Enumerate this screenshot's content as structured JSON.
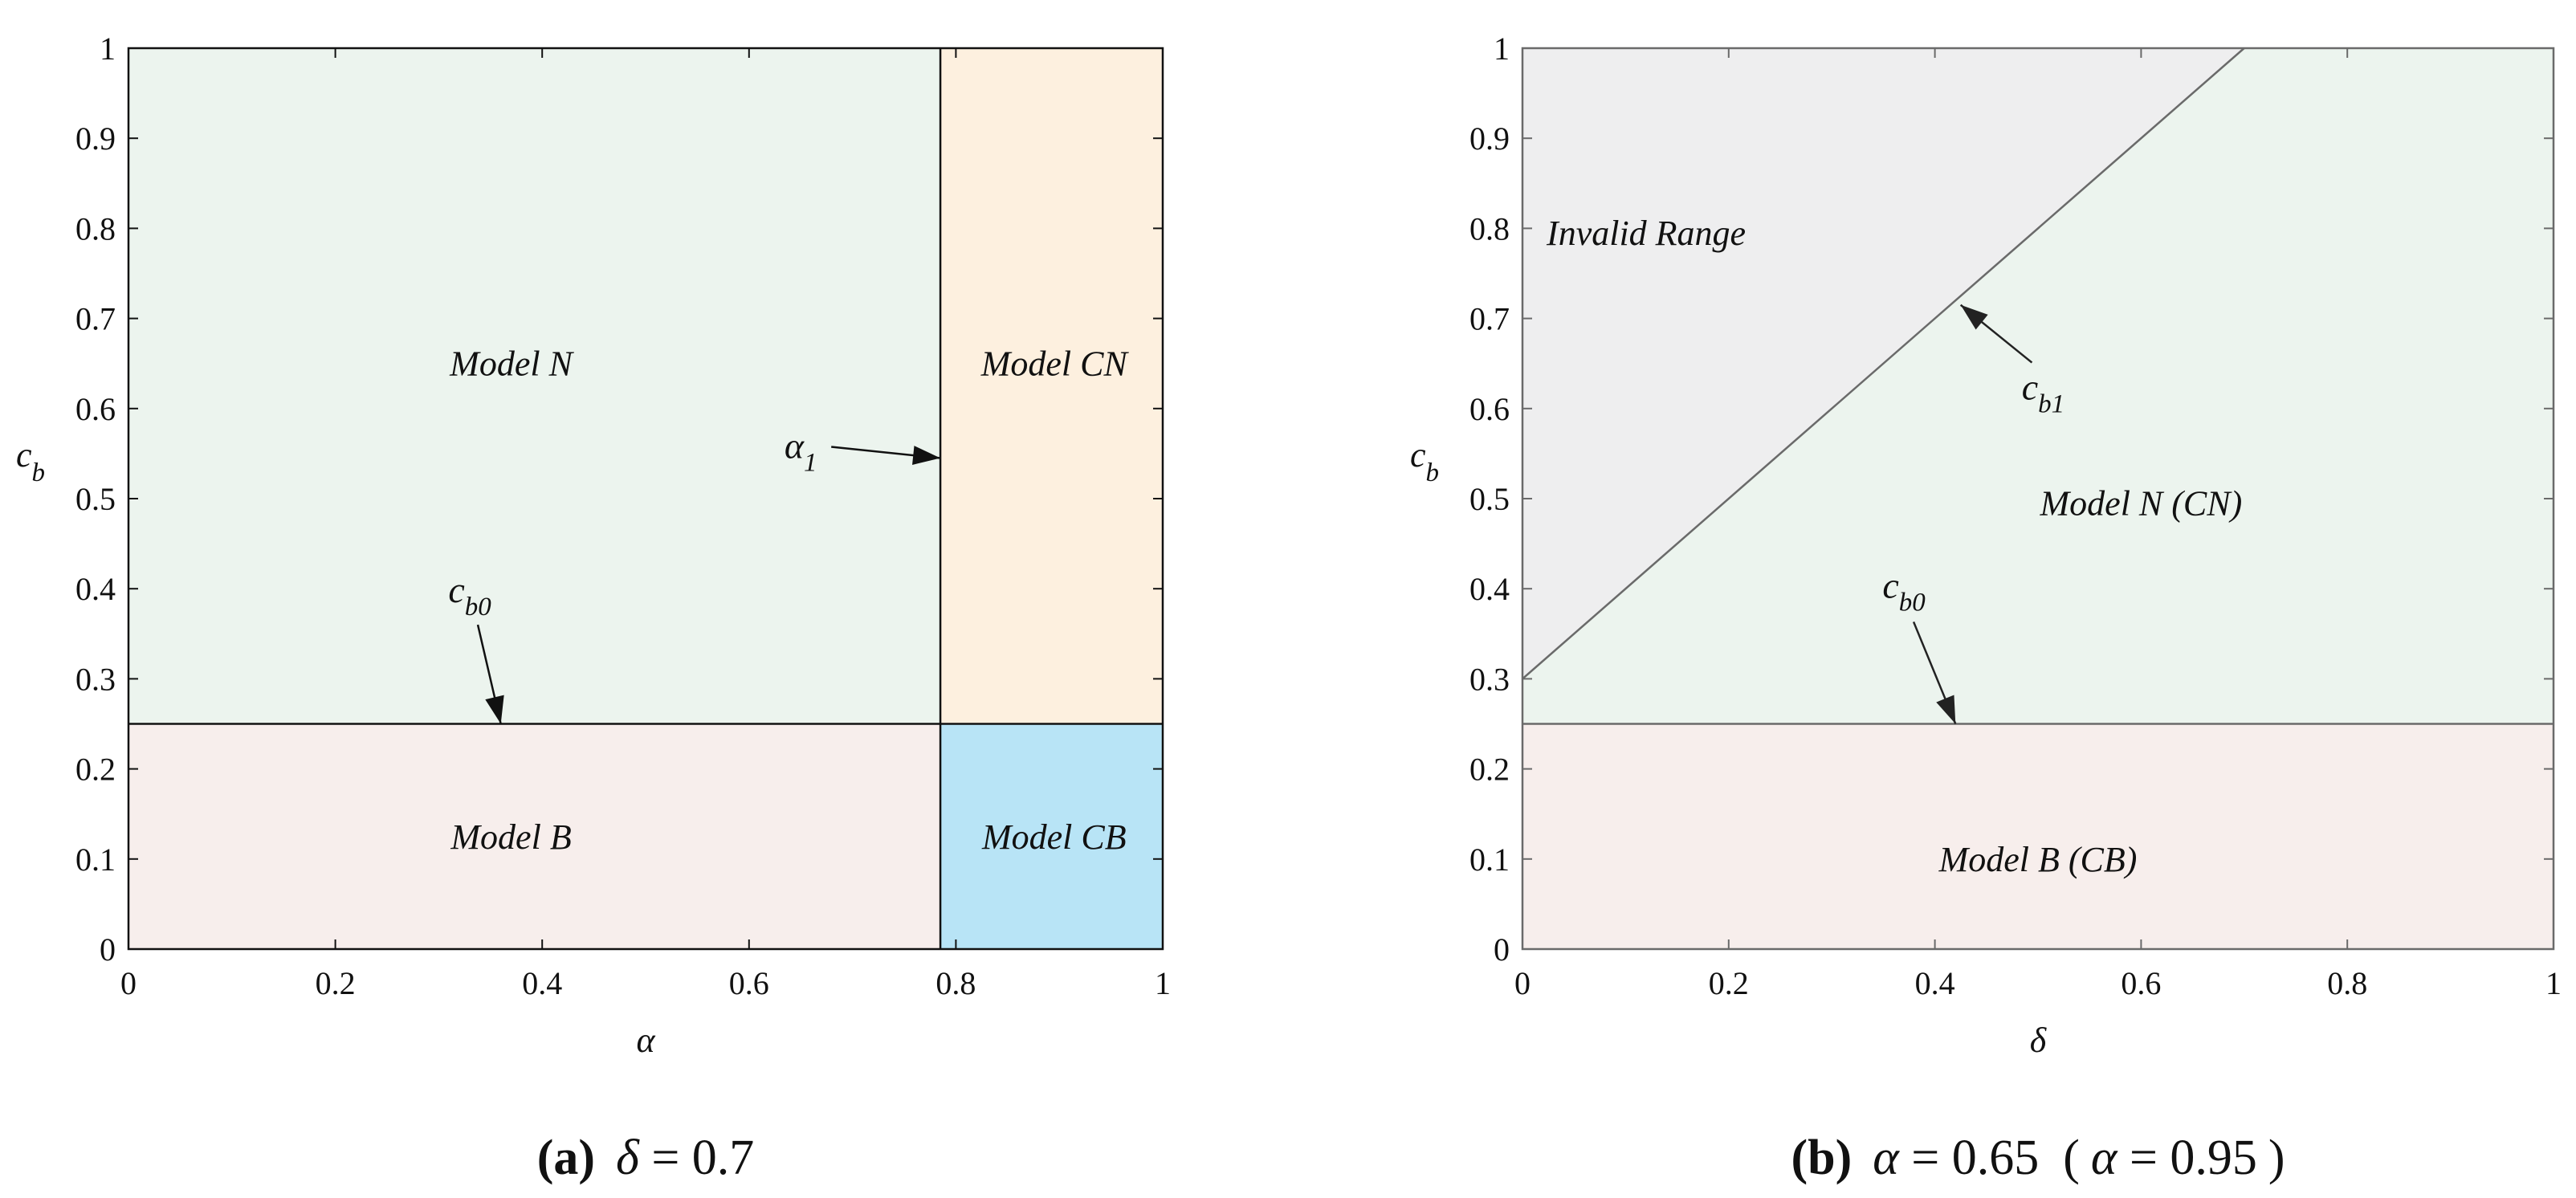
{
  "colors": {
    "green": "#ecf4ee",
    "orange": "#fdf0df",
    "pink": "#f7eeec",
    "blue": "#b8e4f6",
    "gray": "#eeeeef",
    "line_a": "#111111",
    "line_b": "#6a6a6a"
  },
  "chart_data": [
    {
      "type": "region",
      "xlabel": "α",
      "ylabel_main": "c",
      "ylabel_sub": "b",
      "xlim": [
        0,
        1
      ],
      "ylim": [
        0,
        1
      ],
      "xticks": [
        "0",
        "0.2",
        "0.4",
        "0.6",
        "0.8",
        "1"
      ],
      "yticks": [
        "0",
        "0.1",
        "0.2",
        "0.3",
        "0.4",
        "0.5",
        "0.6",
        "0.7",
        "0.8",
        "0.9",
        "1"
      ],
      "thresholds": {
        "alpha1": 0.785,
        "cb0": 0.25
      },
      "regions": [
        {
          "name": "Model N",
          "x": [
            0,
            0.785
          ],
          "y": [
            0.25,
            1
          ],
          "color": "green",
          "label_at": [
            0.37,
            0.65
          ]
        },
        {
          "name": "Model CN",
          "x": [
            0.785,
            1
          ],
          "y": [
            0.25,
            1
          ],
          "color": "orange",
          "label_at": [
            0.895,
            0.65
          ]
        },
        {
          "name": "Model B",
          "x": [
            0,
            0.785
          ],
          "y": [
            0,
            0.25
          ],
          "color": "pink",
          "label_at": [
            0.37,
            0.125
          ]
        },
        {
          "name": "Model CB",
          "x": [
            0.785,
            1
          ],
          "y": [
            0,
            0.25
          ],
          "color": "blue",
          "label_at": [
            0.895,
            0.125
          ]
        }
      ],
      "annotations": [
        {
          "main": "α",
          "sub": "1",
          "text_at": [
            0.65,
            0.545
          ],
          "arrow_to": [
            0.785,
            0.545
          ]
        },
        {
          "main": "c",
          "sub": "b0",
          "text_at": [
            0.33,
            0.385
          ],
          "arrow_to": [
            0.36,
            0.25
          ]
        }
      ],
      "caption": {
        "letter": "(a)",
        "symbol": "δ",
        "equals": " = 0.7"
      }
    },
    {
      "type": "region",
      "xlabel": "δ",
      "ylabel_main": "c",
      "ylabel_sub": "b",
      "xlim": [
        0,
        1
      ],
      "ylim": [
        0,
        1
      ],
      "xticks": [
        "0",
        "0.2",
        "0.4",
        "0.6",
        "0.8",
        "1"
      ],
      "yticks": [
        "0",
        "0.1",
        "0.2",
        "0.3",
        "0.4",
        "0.5",
        "0.6",
        "0.7",
        "0.8",
        "0.9",
        "1"
      ],
      "lines": {
        "cb1": {
          "from": [
            0,
            0.3
          ],
          "to": [
            0.7,
            1
          ]
        },
        "cb0": {
          "y": 0.25
        }
      },
      "regions": [
        {
          "name": "Invalid Range",
          "color": "gray",
          "label_at": [
            0.12,
            0.795
          ]
        },
        {
          "name": "Model N (CN)",
          "color": "green",
          "label_at": [
            0.6,
            0.495
          ]
        },
        {
          "name": "Model B (CB)",
          "color": "pink",
          "label_at": [
            0.5,
            0.1
          ]
        }
      ],
      "annotations": [
        {
          "main": "c",
          "sub": "b1",
          "text_at": [
            0.505,
            0.61
          ],
          "arrow_to": [
            0.425,
            0.715
          ]
        },
        {
          "main": "c",
          "sub": "b0",
          "text_at": [
            0.37,
            0.39
          ],
          "arrow_to": [
            0.42,
            0.25
          ]
        }
      ],
      "caption": {
        "letter": "(b)",
        "sym1": "α",
        "eq1": " = 0.65",
        "open": "(",
        "sym2": "α",
        "eq2": " = 0.95",
        "close": ")"
      }
    }
  ]
}
